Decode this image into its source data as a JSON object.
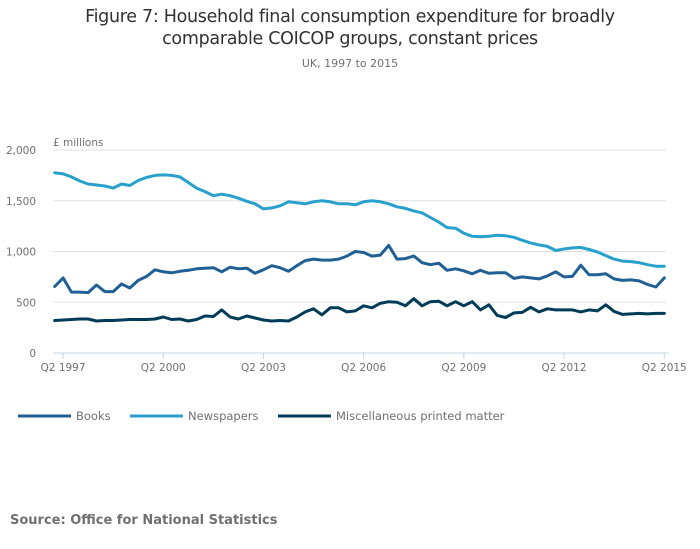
{
  "title": "Figure 7: Household final consumption expenditure for broadly comparable COICOP groups, constant prices",
  "title_lines": [
    "Figure 7: Household final consumption expenditure for broadly",
    "comparable COICOP groups, constant prices"
  ],
  "subtitle": "UK, 1997 to 2015",
  "source": "Source: Office for National Statistics",
  "chart_data": {
    "type": "line",
    "title": "Figure 7: Household final consumption expenditure for broadly comparable COICOP groups, constant prices",
    "subtitle": "UK, 1997 to 2015",
    "xlabel": "",
    "ylabel": "£ millions",
    "ylim": [
      0,
      2000
    ],
    "yticks": [
      0,
      500,
      1000,
      1500,
      2000
    ],
    "ytick_labels": [
      "0",
      "500",
      "1,000",
      "1,500",
      "2,000"
    ],
    "x_start": "Q1 1997",
    "x_end": "Q2 2015",
    "x_unit": "quarter",
    "xtick_labels": [
      "Q2 1997",
      "Q2 2000",
      "Q2 2003",
      "Q2 2006",
      "Q2 2009",
      "Q2 2012",
      "Q2 2015"
    ],
    "xtick_indices": [
      1,
      13,
      25,
      37,
      49,
      61,
      73
    ],
    "grid": true,
    "legend_position": "bottom-left",
    "series": [
      {
        "name": "Books",
        "color": "#206095",
        "values": [
          655,
          740,
          600,
          600,
          595,
          670,
          605,
          605,
          680,
          640,
          715,
          755,
          820,
          800,
          790,
          805,
          815,
          830,
          835,
          840,
          800,
          845,
          830,
          835,
          785,
          820,
          860,
          840,
          805,
          860,
          910,
          925,
          915,
          915,
          925,
          955,
          1000,
          990,
          955,
          965,
          1060,
          925,
          930,
          955,
          890,
          870,
          885,
          815,
          830,
          810,
          780,
          815,
          785,
          790,
          790,
          735,
          750,
          740,
          730,
          760,
          800,
          750,
          755,
          865,
          770,
          770,
          780,
          730,
          715,
          720,
          710,
          675,
          650,
          740
        ]
      },
      {
        "name": "Newspapers",
        "color": "#27A0CC",
        "values": [
          1775,
          1765,
          1735,
          1695,
          1665,
          1655,
          1645,
          1625,
          1665,
          1650,
          1700,
          1730,
          1750,
          1755,
          1750,
          1735,
          1680,
          1625,
          1590,
          1550,
          1565,
          1550,
          1525,
          1495,
          1470,
          1420,
          1430,
          1450,
          1490,
          1480,
          1470,
          1490,
          1500,
          1490,
          1470,
          1470,
          1460,
          1490,
          1500,
          1490,
          1470,
          1440,
          1425,
          1400,
          1380,
          1335,
          1290,
          1235,
          1230,
          1180,
          1150,
          1145,
          1150,
          1160,
          1155,
          1140,
          1110,
          1085,
          1065,
          1050,
          1010,
          1025,
          1035,
          1040,
          1020,
          995,
          960,
          925,
          905,
          900,
          890,
          870,
          855,
          855
        ]
      },
      {
        "name": "Miscellaneous printed matter",
        "color": "#003C57",
        "values": [
          320,
          325,
          330,
          335,
          335,
          315,
          320,
          320,
          325,
          330,
          330,
          330,
          335,
          355,
          330,
          335,
          315,
          330,
          365,
          360,
          425,
          355,
          335,
          365,
          345,
          325,
          315,
          320,
          315,
          355,
          405,
          435,
          375,
          445,
          445,
          405,
          415,
          465,
          445,
          490,
          505,
          500,
          465,
          535,
          465,
          505,
          510,
          465,
          505,
          465,
          505,
          425,
          475,
          370,
          350,
          395,
          400,
          450,
          405,
          435,
          425,
          425,
          425,
          405,
          425,
          415,
          475,
          410,
          380,
          385,
          390,
          385,
          390,
          390
        ]
      }
    ]
  },
  "colors": {
    "gridline": "#e0e0e0",
    "axis": "#c8d4e3",
    "text": "#707071",
    "title": "#323132"
  }
}
